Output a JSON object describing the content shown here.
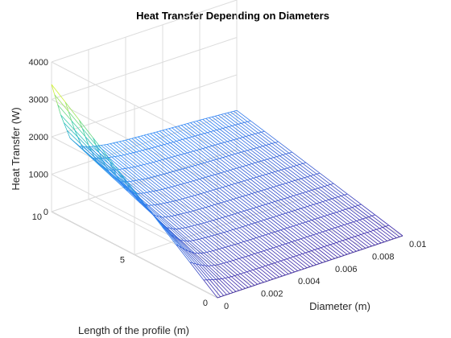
{
  "chart_data": {
    "type": "surface",
    "title": "Heat Transfer Depending on Diameters",
    "xlabel": "Diameter (m)",
    "ylabel": "Length of the profile (m)",
    "zlabel": "Heat Transfer (W)",
    "xlim": [
      0,
      0.01
    ],
    "ylim": [
      0,
      10
    ],
    "zlim": [
      0,
      4000
    ],
    "x_ticks": [
      0,
      0.002,
      0.004,
      0.006,
      0.008,
      0.01
    ],
    "x_tick_labels": [
      "0",
      "0.002",
      "0.004",
      "0.006",
      "0.008",
      "0.01"
    ],
    "y_ticks": [
      0,
      5,
      10
    ],
    "y_tick_labels": [
      "0",
      "5",
      "10"
    ],
    "z_ticks": [
      0,
      1000,
      2000,
      3000,
      4000
    ],
    "z_tick_labels": [
      "0",
      "1000",
      "2000",
      "3000",
      "4000"
    ],
    "grid": true,
    "colormap": "parula",
    "surface_samples": {
      "description_units": "heat transfer (W) at length = 10 m",
      "x": [
        0,
        0.0005,
        0.001,
        0.0015,
        0.002,
        0.003,
        0.004,
        0.006,
        0.008,
        0.01
      ],
      "z": [
        3400,
        2500,
        1800,
        1500,
        1400,
        1300,
        1250,
        1180,
        1120,
        1050
      ]
    },
    "colors": {
      "low": "#3e26a8",
      "mid_low": "#2e87f7",
      "mid": "#2ac9b3",
      "high": "#f9fb15"
    }
  }
}
